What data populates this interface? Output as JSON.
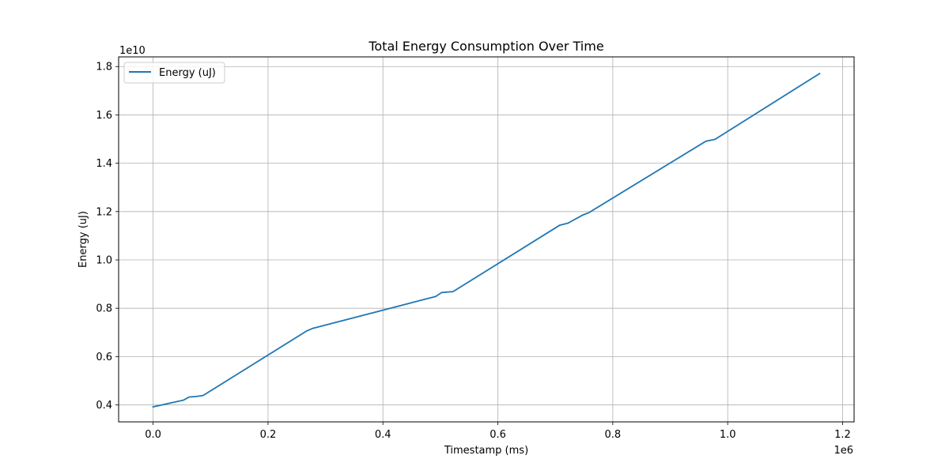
{
  "chart_data": {
    "type": "line",
    "title": "Total Energy Consumption Over Time",
    "xlabel": "Timestamp (ms)",
    "ylabel": "Energy (uJ)",
    "x_offset_text": "1e6",
    "y_offset_text": "1e10",
    "xlim": [
      -60000,
      1220000
    ],
    "ylim": [
      3300000000.0,
      18400000000.0
    ],
    "x_ticks": [
      0,
      200000,
      400000,
      600000,
      800000,
      1000000,
      1200000
    ],
    "x_tick_labels": [
      "0.0",
      "0.2",
      "0.4",
      "0.6",
      "0.8",
      "1.0",
      "1.2"
    ],
    "y_ticks": [
      4000000000.0,
      6000000000.0,
      8000000000.0,
      10000000000.0,
      12000000000.0,
      14000000000.0,
      16000000000.0,
      18000000000.0
    ],
    "y_tick_labels": [
      "0.4",
      "0.6",
      "0.8",
      "1.0",
      "1.2",
      "1.4",
      "1.6",
      "1.8"
    ],
    "grid": true,
    "legend_position": "top-left",
    "series": [
      {
        "name": "Energy (uJ)",
        "color": "#1f77b4",
        "x": [
          0,
          53000,
          63000,
          75000,
          87000,
          268000,
          278000,
          492000,
          502000,
          522000,
          708000,
          722000,
          748000,
          758000,
          962000,
          978000,
          1160000
        ],
        "y": [
          3920000000.0,
          4200000000.0,
          4330000000.0,
          4350000000.0,
          4390000000.0,
          7070000000.0,
          7170000000.0,
          8490000000.0,
          8650000000.0,
          8690000000.0,
          11440000000.0,
          11520000000.0,
          11860000000.0,
          11950000000.0,
          14910000000.0,
          14990000000.0,
          17710000000.0
        ]
      }
    ]
  }
}
